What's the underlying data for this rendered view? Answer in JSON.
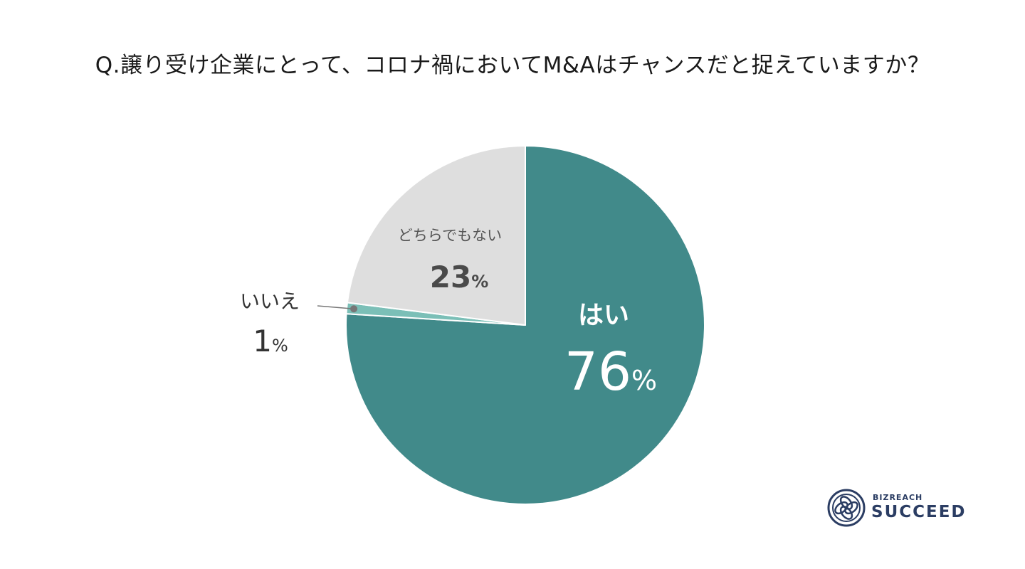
{
  "chart_data": {
    "type": "pie",
    "title": "Q.譲り受け企業にとって、コロナ禍においてM&Aはチャンスだと捉えていますか？",
    "slices": [
      {
        "label": "はい",
        "value": 76,
        "value_label": "76",
        "color": "#418a8a"
      },
      {
        "label": "いいえ",
        "value": 1,
        "value_label": "1",
        "color": "#7bbfb7"
      },
      {
        "label": "どちらでもない",
        "value": 23,
        "value_label": "23",
        "color": "#dedede"
      }
    ],
    "percent_sign": "%",
    "start": "top",
    "direction": "clockwise"
  },
  "logo": {
    "top_text": "BIZREACH",
    "main_text": "SUCCEED",
    "color": "#2b3d63"
  }
}
